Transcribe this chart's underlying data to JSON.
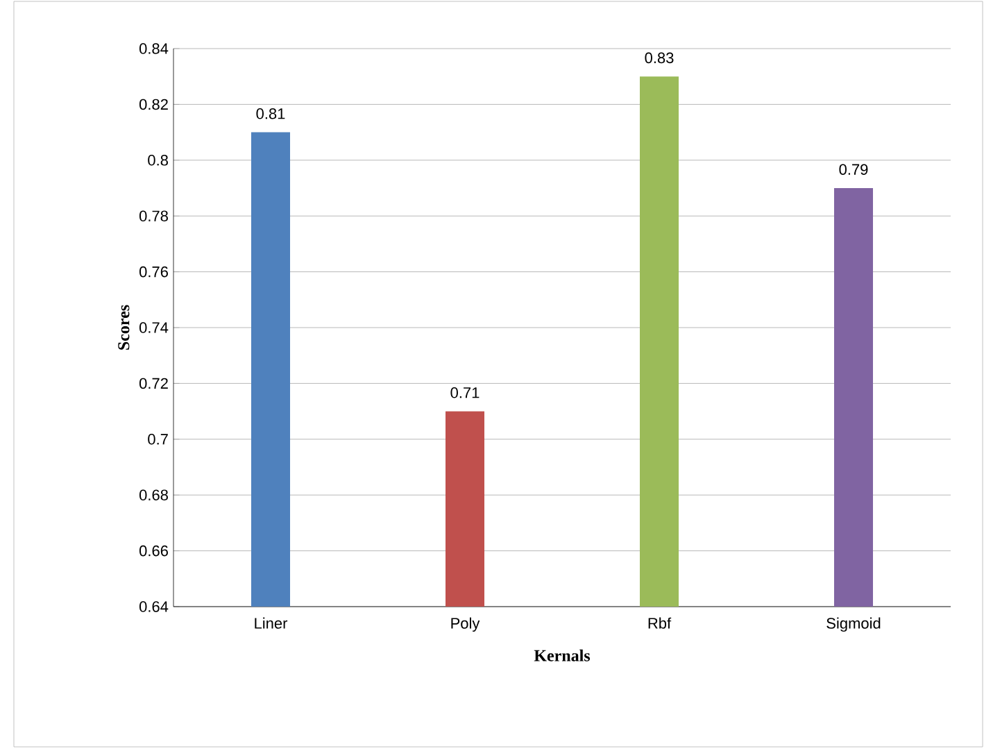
{
  "chart_data": {
    "type": "bar",
    "xlabel": "Kernals",
    "ylabel": "Scores",
    "categories": [
      "Liner",
      "Poly",
      "Rbf",
      "Sigmoid"
    ],
    "values": [
      0.81,
      0.71,
      0.83,
      0.79
    ],
    "colors": [
      "#4f81bd",
      "#c0504d",
      "#9bbb59",
      "#8064a2"
    ],
    "ylim": [
      0.64,
      0.84
    ],
    "yticks": [
      0.64,
      0.66,
      0.68,
      0.7,
      0.72,
      0.74,
      0.76,
      0.78,
      0.8,
      0.82,
      0.84
    ],
    "grid": "y",
    "data_labels": true
  }
}
